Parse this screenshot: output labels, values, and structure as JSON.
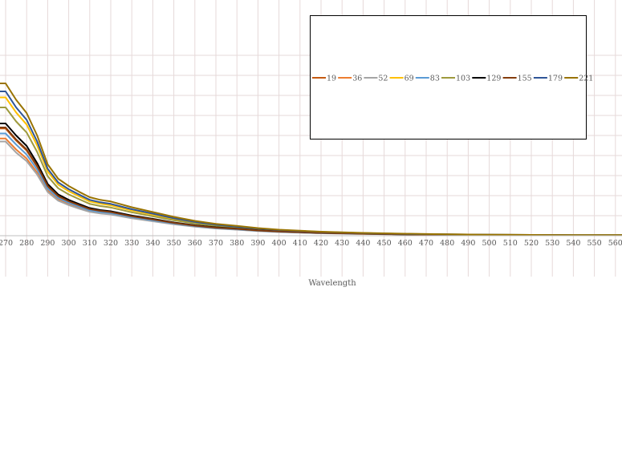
{
  "chart_data": {
    "type": "line",
    "title": "",
    "xlabel": "Wavelength",
    "ylabel": "",
    "x_ticks": [
      270,
      280,
      290,
      300,
      310,
      320,
      330,
      340,
      350,
      360,
      370,
      380,
      390,
      400,
      410,
      420,
      430,
      440,
      450,
      460,
      470,
      480,
      490,
      500,
      510,
      520,
      530,
      540,
      550,
      560
    ],
    "x_range": [
      265,
      566
    ],
    "y_range": [
      0,
      1.0
    ],
    "grid": true,
    "legend_placement": "top-right",
    "x": [
      265,
      270,
      275,
      280,
      285,
      290,
      295,
      300,
      305,
      310,
      315,
      320,
      330,
      340,
      350,
      360,
      370,
      380,
      390,
      400,
      420,
      440,
      460,
      480,
      500,
      520,
      540,
      566
    ],
    "series": [
      {
        "name": "19",
        "color": "#C55A11",
        "values": [
          0.535,
          0.535,
          0.475,
          0.425,
          0.345,
          0.245,
          0.195,
          0.17,
          0.15,
          0.131,
          0.122,
          0.116,
          0.096,
          0.08,
          0.063,
          0.05,
          0.04,
          0.033,
          0.026,
          0.021,
          0.014,
          0.01,
          0.007,
          0.005,
          0.004,
          0.003,
          0.002,
          0.002
        ]
      },
      {
        "name": "36",
        "color": "#ED7D31",
        "values": [
          0.485,
          0.485,
          0.43,
          0.385,
          0.315,
          0.225,
          0.18,
          0.158,
          0.14,
          0.123,
          0.115,
          0.11,
          0.09,
          0.075,
          0.059,
          0.047,
          0.037,
          0.031,
          0.024,
          0.019,
          0.013,
          0.009,
          0.006,
          0.005,
          0.004,
          0.003,
          0.002,
          0.002
        ]
      },
      {
        "name": "52",
        "color": "#A5A5A5",
        "values": [
          0.47,
          0.47,
          0.415,
          0.372,
          0.305,
          0.218,
          0.175,
          0.153,
          0.135,
          0.119,
          0.111,
          0.106,
          0.087,
          0.072,
          0.057,
          0.045,
          0.036,
          0.03,
          0.023,
          0.018,
          0.012,
          0.009,
          0.006,
          0.005,
          0.004,
          0.003,
          0.002,
          0.002
        ]
      },
      {
        "name": "69",
        "color": "#FFC000",
        "values": [
          0.69,
          0.69,
          0.615,
          0.555,
          0.45,
          0.32,
          0.255,
          0.222,
          0.196,
          0.171,
          0.16,
          0.152,
          0.126,
          0.105,
          0.083,
          0.066,
          0.053,
          0.043,
          0.034,
          0.027,
          0.018,
          0.013,
          0.009,
          0.007,
          0.005,
          0.004,
          0.003,
          0.003
        ]
      },
      {
        "name": "83",
        "color": "#5B9BD5",
        "values": [
          0.51,
          0.51,
          0.455,
          0.405,
          0.33,
          0.235,
          0.188,
          0.164,
          0.145,
          0.127,
          0.118,
          0.113,
          0.093,
          0.077,
          0.061,
          0.048,
          0.038,
          0.032,
          0.025,
          0.02,
          0.013,
          0.01,
          0.007,
          0.005,
          0.004,
          0.003,
          0.002,
          0.002
        ]
      },
      {
        "name": "103",
        "color": "#9E9A3D",
        "values": [
          0.64,
          0.64,
          0.57,
          0.515,
          0.418,
          0.297,
          0.237,
          0.206,
          0.182,
          0.159,
          0.148,
          0.141,
          0.117,
          0.097,
          0.077,
          0.061,
          0.049,
          0.04,
          0.032,
          0.025,
          0.017,
          0.012,
          0.008,
          0.006,
          0.005,
          0.004,
          0.003,
          0.003
        ]
      },
      {
        "name": "129",
        "color": "#000000",
        "values": [
          0.56,
          0.56,
          0.5,
          0.448,
          0.362,
          0.258,
          0.206,
          0.179,
          0.158,
          0.138,
          0.128,
          0.122,
          0.101,
          0.084,
          0.066,
          0.052,
          0.042,
          0.035,
          0.027,
          0.022,
          0.014,
          0.01,
          0.007,
          0.005,
          0.004,
          0.003,
          0.002,
          0.002
        ]
      },
      {
        "name": "155",
        "color": "#843C0C",
        "values": [
          0.54,
          0.54,
          0.48,
          0.43,
          0.349,
          0.248,
          0.198,
          0.172,
          0.152,
          0.133,
          0.124,
          0.118,
          0.097,
          0.081,
          0.064,
          0.05,
          0.04,
          0.034,
          0.026,
          0.021,
          0.014,
          0.01,
          0.007,
          0.005,
          0.004,
          0.003,
          0.002,
          0.002
        ]
      },
      {
        "name": "179",
        "color": "#2F5597",
        "values": [
          0.72,
          0.72,
          0.64,
          0.578,
          0.47,
          0.334,
          0.266,
          0.232,
          0.205,
          0.179,
          0.167,
          0.159,
          0.132,
          0.11,
          0.087,
          0.069,
          0.055,
          0.045,
          0.036,
          0.028,
          0.019,
          0.013,
          0.009,
          0.007,
          0.005,
          0.004,
          0.003,
          0.003
        ]
      },
      {
        "name": "221",
        "color": "#997300",
        "values": [
          0.76,
          0.76,
          0.678,
          0.612,
          0.5,
          0.356,
          0.284,
          0.248,
          0.219,
          0.192,
          0.179,
          0.171,
          0.142,
          0.118,
          0.094,
          0.074,
          0.059,
          0.049,
          0.038,
          0.03,
          0.02,
          0.014,
          0.01,
          0.007,
          0.005,
          0.004,
          0.003,
          0.003
        ]
      }
    ]
  }
}
